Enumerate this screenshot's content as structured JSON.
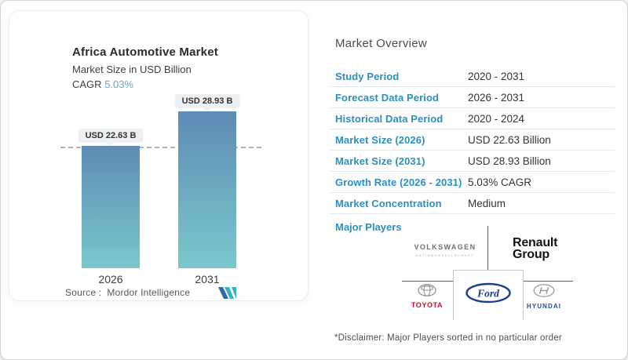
{
  "chart_data": {
    "type": "bar",
    "title": "Africa Automotive Market",
    "subtitle": "Market Size in USD Billion",
    "cagr_label": "CAGR",
    "cagr_value": "5.03%",
    "categories": [
      "2026",
      "2031"
    ],
    "values": [
      22.63,
      28.93
    ],
    "value_labels": [
      "USD 22.63 B",
      "USD 28.93 B"
    ],
    "unit": "USD Billion",
    "ylim": [
      0,
      28.93
    ],
    "reference_line_at": 22.63,
    "grid": false,
    "legend": false,
    "source_label": "Source :",
    "source_value": "Mordor Intelligence"
  },
  "overview": {
    "heading": "Market Overview",
    "rows": [
      {
        "label": "Study Period",
        "value": "2020 - 2031"
      },
      {
        "label": "Forecast Data Period",
        "value": "2026 - 2031"
      },
      {
        "label": "Historical Data Period",
        "value": "2020 - 2024"
      },
      {
        "label": "Market Size (2026)",
        "value": "USD 22.63 Billion"
      },
      {
        "label": "Market Size (2031)",
        "value": "USD 28.93 Billion"
      },
      {
        "label": "Growth Rate (2026 - 2031)",
        "value": "5.03% CAGR"
      },
      {
        "label": "Market Concentration",
        "value": "Medium"
      }
    ],
    "major_players": {
      "label": "Major Players",
      "volkswagen": {
        "name": "VOLKSWAGEN",
        "subtext": "AKTIENGESELLSCHAFT"
      },
      "renault": {
        "line1": "Renault",
        "line2": "Group"
      },
      "toyota": {
        "name": "TOYOTA"
      },
      "ford": {
        "name": "Ford"
      },
      "hyundai": {
        "name": "HYUNDAI"
      }
    },
    "disclaimer": "*Disclaimer: Major Players sorted in no particular order"
  },
  "colors": {
    "accent_blue": "#2b8fc0",
    "cagr_blue": "#68a4cc",
    "bar_gradient_top": "#5d8bb4",
    "bar_gradient_bottom": "#7cc7cd",
    "pill_background": "#edf0f2",
    "toyota_red": "#c8102e",
    "hyundai_blue": "#1f4e9c",
    "ford_blue": "#1b3e92",
    "mordor_navy": "#2f6b9e",
    "mordor_teal": "#38b2c4"
  }
}
